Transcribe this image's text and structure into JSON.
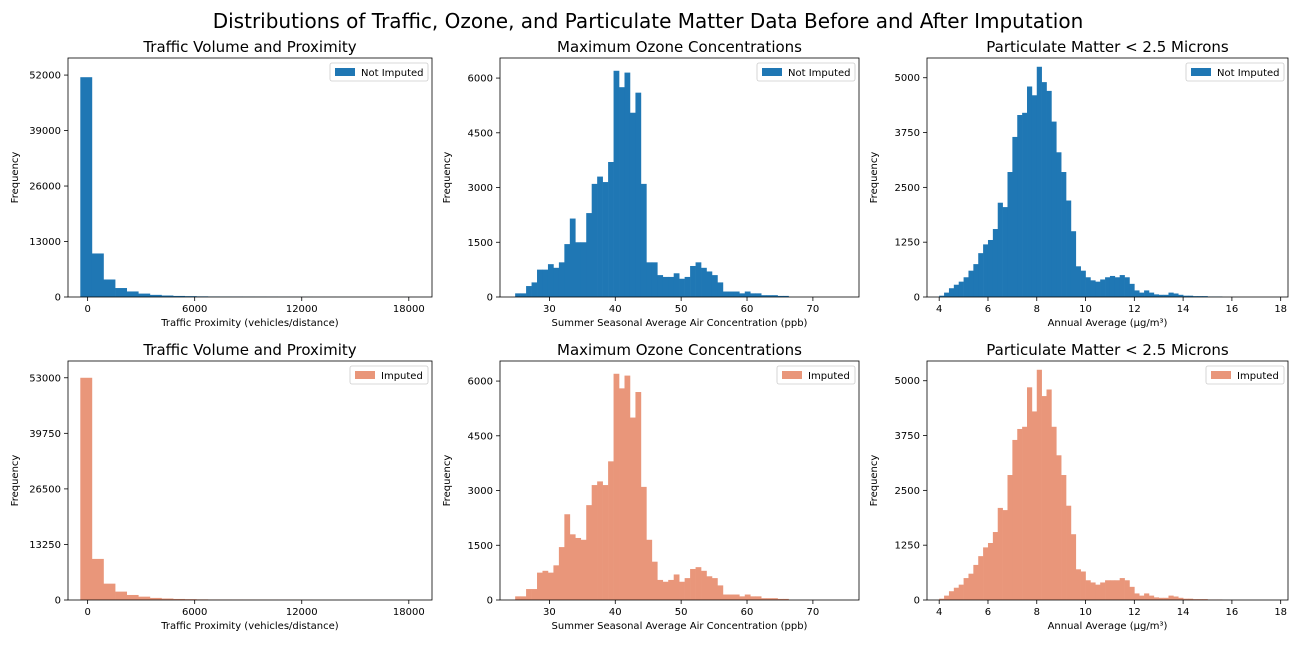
{
  "figure": {
    "title": "Distributions of Traffic, Ozone, and Particulate Matter Data Before and After Imputation"
  },
  "colors": {
    "not_imputed": "#1f77b4",
    "imputed": "#e9967a"
  },
  "chart_data": [
    {
      "type": "bar",
      "title": "Traffic Volume and Proximity",
      "xlabel": "Traffic Proximity (vehicles/distance)",
      "ylabel": "Frequency",
      "legend": "Not Imputed",
      "legend_position": "top-right",
      "grid": false,
      "xlim": [
        -1100,
        19300
      ],
      "ylim": [
        0,
        56000
      ],
      "xticks": [
        0,
        6000,
        12000,
        18000
      ],
      "yticks": [
        0,
        13000,
        26000,
        39000,
        52000
      ],
      "bin_start": -410,
      "bin_width": 650,
      "values": [
        51500,
        10200,
        4100,
        2100,
        1300,
        800,
        500,
        350,
        250,
        200,
        150,
        120,
        100,
        90,
        80,
        70,
        60,
        50,
        40,
        30,
        20,
        20,
        15,
        10,
        10,
        8,
        6,
        5,
        4,
        3
      ]
    },
    {
      "type": "bar",
      "title": "Maximum Ozone Concentrations",
      "xlabel": "Summer Seasonal Average Air Concentration (ppb)",
      "ylabel": "Frequency",
      "legend": "Not Imputed",
      "legend_position": "top-right",
      "grid": false,
      "xlim": [
        22.5,
        77
      ],
      "ylim": [
        0,
        6550
      ],
      "xticks": [
        30,
        40,
        50,
        60,
        70
      ],
      "yticks": [
        0,
        1500,
        3000,
        4500,
        6000
      ],
      "bin_start": 24.8,
      "bin_width": 0.83,
      "values": [
        100,
        100,
        300,
        400,
        750,
        750,
        900,
        800,
        950,
        1450,
        2150,
        1500,
        1500,
        2300,
        3100,
        3300,
        3150,
        3700,
        6200,
        5750,
        6150,
        5050,
        5600,
        3100,
        950,
        950,
        600,
        550,
        550,
        650,
        500,
        550,
        850,
        950,
        800,
        700,
        600,
        400,
        150,
        150,
        150,
        100,
        150,
        100,
        100,
        50,
        50,
        50,
        30,
        30
      ]
    },
    {
      "type": "bar",
      "title": "Particulate Matter < 2.5 Microns",
      "xlabel": "Annual Average (μg/m³)",
      "ylabel": "Frequency",
      "legend": "Not Imputed",
      "legend_position": "top-right",
      "grid": false,
      "xlim": [
        3.5,
        18.3
      ],
      "ylim": [
        0,
        5450
      ],
      "xticks": [
        4,
        6,
        8,
        10,
        12,
        14,
        16,
        18
      ],
      "yticks": [
        0,
        1250,
        2500,
        3750,
        5000
      ],
      "bin_start": 4.0,
      "bin_width": 0.2,
      "values": [
        30,
        100,
        200,
        280,
        350,
        450,
        600,
        750,
        1000,
        1200,
        1300,
        1550,
        2150,
        2050,
        2850,
        3650,
        4150,
        4200,
        4800,
        4600,
        5250,
        4900,
        4700,
        4000,
        3300,
        2850,
        2200,
        1500,
        700,
        600,
        450,
        380,
        350,
        400,
        450,
        480,
        450,
        500,
        450,
        300,
        150,
        100,
        150,
        100,
        60,
        50,
        50,
        100,
        80,
        50,
        30,
        30,
        20,
        20,
        20,
        10,
        10,
        10
      ]
    },
    {
      "type": "bar",
      "title": "Traffic Volume and Proximity",
      "xlabel": "Traffic Proximity (vehicles/distance)",
      "ylabel": "Frequency",
      "legend": "Imputed",
      "legend_position": "top-right",
      "grid": false,
      "xlim": [
        -1100,
        19300
      ],
      "ylim": [
        0,
        57000
      ],
      "xticks": [
        0,
        6000,
        12000,
        18000
      ],
      "yticks": [
        0,
        13250,
        26500,
        39750,
        53000
      ],
      "bin_start": -410,
      "bin_width": 650,
      "values": [
        53000,
        9800,
        3900,
        2000,
        1200,
        800,
        500,
        350,
        250,
        200,
        150,
        120,
        100,
        90,
        80,
        70,
        60,
        50,
        40,
        30,
        20,
        20,
        15,
        10,
        10,
        8,
        6,
        5,
        4,
        3
      ]
    },
    {
      "type": "bar",
      "title": "Maximum Ozone Concentrations",
      "xlabel": "Summer Seasonal Average Air Concentration (ppb)",
      "ylabel": "Frequency",
      "legend": "Imputed",
      "legend_position": "top-right",
      "grid": false,
      "xlim": [
        22.5,
        77
      ],
      "ylim": [
        0,
        6550
      ],
      "xticks": [
        30,
        40,
        50,
        60,
        70
      ],
      "yticks": [
        0,
        1500,
        3000,
        4500,
        6000
      ],
      "bin_start": 24.8,
      "bin_width": 0.83,
      "values": [
        100,
        100,
        300,
        300,
        750,
        800,
        750,
        950,
        1450,
        2350,
        1800,
        1700,
        1650,
        2600,
        3150,
        3250,
        3150,
        3800,
        6200,
        5800,
        6150,
        5000,
        5700,
        3100,
        1650,
        1050,
        550,
        500,
        550,
        700,
        500,
        600,
        850,
        900,
        800,
        650,
        600,
        400,
        150,
        150,
        150,
        100,
        150,
        100,
        100,
        50,
        50,
        50,
        30,
        30
      ]
    },
    {
      "type": "bar",
      "title": "Particulate Matter < 2.5 Microns",
      "xlabel": "Annual Average (μg/m³)",
      "ylabel": "Frequency",
      "legend": "Imputed",
      "legend_position": "top-right",
      "grid": false,
      "xlim": [
        3.5,
        18.3
      ],
      "ylim": [
        0,
        5450
      ],
      "xticks": [
        4,
        6,
        8,
        10,
        12,
        14,
        16,
        18
      ],
      "yticks": [
        0,
        1250,
        2500,
        3750,
        5000
      ],
      "bin_start": 4.0,
      "bin_width": 0.2,
      "values": [
        30,
        100,
        200,
        280,
        350,
        500,
        600,
        800,
        1000,
        1200,
        1300,
        1550,
        2100,
        2050,
        2850,
        3650,
        3900,
        3950,
        4850,
        4300,
        5250,
        4650,
        4800,
        3950,
        3300,
        2850,
        2150,
        1500,
        700,
        650,
        450,
        400,
        350,
        400,
        450,
        450,
        450,
        500,
        450,
        300,
        150,
        100,
        150,
        100,
        60,
        50,
        50,
        100,
        80,
        50,
        30,
        30,
        20,
        20,
        20,
        10,
        10,
        10
      ]
    }
  ]
}
